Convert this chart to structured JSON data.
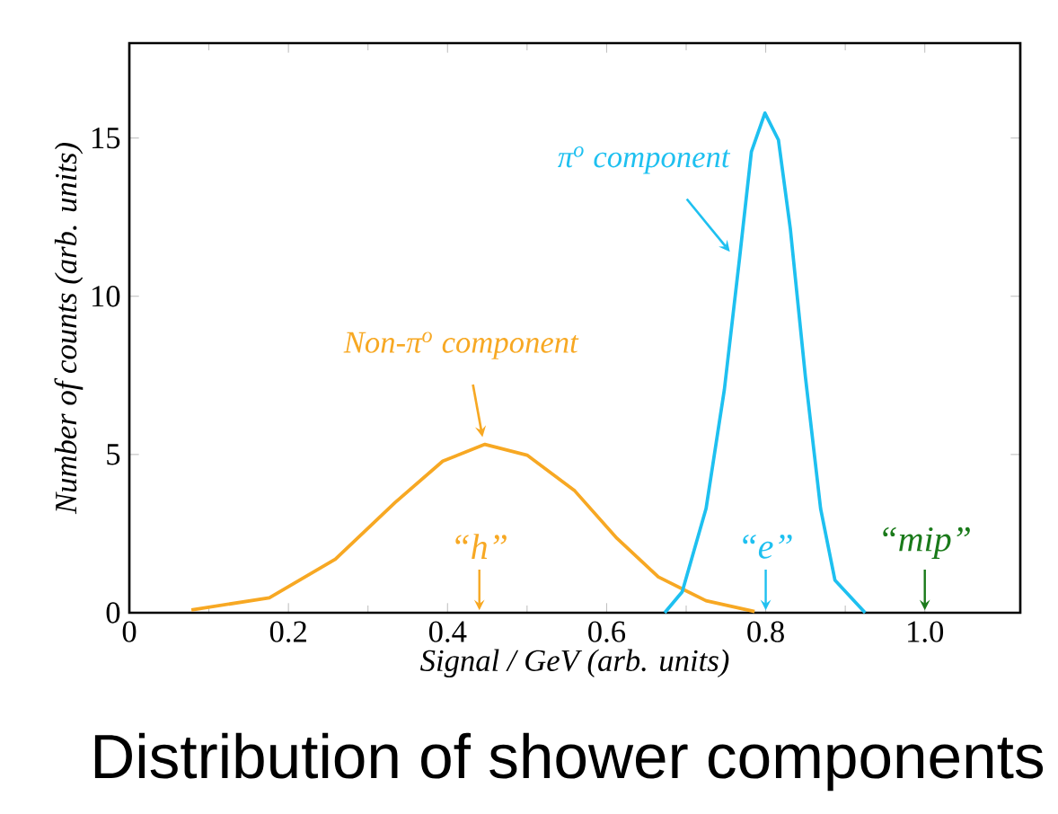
{
  "chart_data": {
    "type": "line",
    "title": "Distribution of shower components",
    "xlabel": "Signal / GeV (arb. units)",
    "ylabel": "Number of counts (arb. units)",
    "xlim": [
      0,
      1.12
    ],
    "ylim": [
      0,
      18
    ],
    "xticks": [
      0,
      0.2,
      0.4,
      0.6,
      0.8,
      {
        "value": 1.0,
        "label": "1.0"
      }
    ],
    "yticks": [
      0,
      5,
      10,
      15
    ],
    "series": [
      {
        "name": "Non-π$^{o}$ component",
        "color": "#f7a823",
        "x": [
          0.078,
          0.176,
          0.259,
          0.334,
          0.394,
          0.447,
          0.5,
          0.56,
          0.613,
          0.665,
          0.725,
          0.786
        ],
        "values": [
          0.09,
          0.47,
          1.69,
          3.48,
          4.79,
          5.32,
          4.98,
          3.85,
          2.35,
          1.13,
          0.38,
          0.04
        ]
      },
      {
        "name": "π$^{o}$ component",
        "color": "#1ec0f0",
        "x": [
          0.673,
          0.695,
          0.725,
          0.748,
          0.767,
          0.782,
          0.799,
          0.816,
          0.831,
          0.85,
          0.869,
          0.887,
          0.925
        ],
        "values": [
          0,
          0.66,
          3.29,
          7.05,
          11.18,
          14.57,
          15.79,
          14.94,
          12.12,
          7.43,
          3.29,
          1.03,
          0
        ]
      }
    ],
    "ref_lines": [
      {
        "axis": "x",
        "value": 0.44,
        "label": "“h”",
        "color": "#f7a823"
      },
      {
        "axis": "x",
        "value": 0.8,
        "label": "“e”",
        "color": "#1ec0f0"
      },
      {
        "axis": "x",
        "value": 1.0,
        "label": "“mip”",
        "color": "#1a7a1a"
      }
    ]
  }
}
